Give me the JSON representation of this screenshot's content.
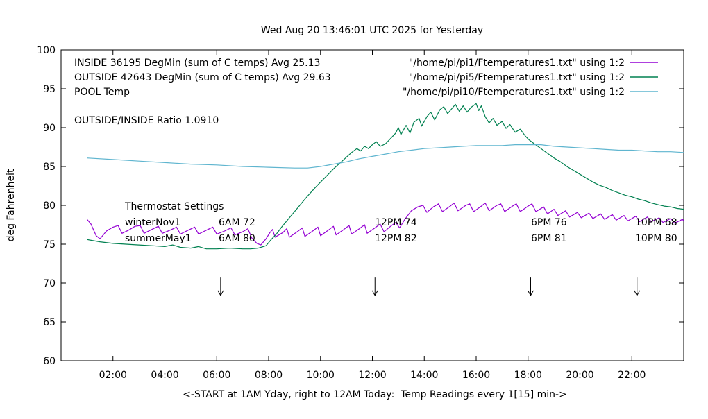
{
  "title": "Wed Aug 20 13:46:01 UTC 2025 for Yesterday",
  "axes": {
    "y": {
      "label": "deg Fahrenheit",
      "min": 60,
      "max": 100,
      "ticks": [
        {
          "v": 60,
          "label": "60"
        },
        {
          "v": 65,
          "label": "65"
        },
        {
          "v": 70,
          "label": "70"
        },
        {
          "v": 75,
          "label": "75"
        },
        {
          "v": 80,
          "label": "80"
        },
        {
          "v": 85,
          "label": "85"
        },
        {
          "v": 90,
          "label": "90"
        },
        {
          "v": 95,
          "label": "95"
        },
        {
          "v": 100,
          "label": "100"
        }
      ]
    },
    "x": {
      "label": "<-START at 1AM Yday, right to 12AM Today:  Temp Readings every 1[15] min->",
      "ticks": [
        {
          "h": 2,
          "label": "02:00"
        },
        {
          "h": 4,
          "label": "04:00"
        },
        {
          "h": 6,
          "label": "06:00"
        },
        {
          "h": 8,
          "label": "08:00"
        },
        {
          "h": 10,
          "label": "10:00"
        },
        {
          "h": 12,
          "label": "12:00"
        },
        {
          "h": 14,
          "label": "14:00"
        },
        {
          "h": 16,
          "label": "16:00"
        },
        {
          "h": 18,
          "label": "18:00"
        },
        {
          "h": 20,
          "label": "20:00"
        },
        {
          "h": 22,
          "label": "22:00"
        }
      ]
    }
  },
  "legend": [
    {
      "label": "INSIDE 36195 DegMin (sum of C temps) Avg 25.13",
      "file": "\"/home/pi/pi1/Ftemperatures1.txt\" using 1:2"
    },
    {
      "label": "OUTSIDE 42643 DegMin (sum of C temps) Avg 29.63",
      "file": "\"/home/pi/pi5/Ftemperatures1.txt\" using 1:2"
    },
    {
      "label": "POOL Temp",
      "file": "\"/home/pi/pi10/Ftemperatures1.txt\" using 1:2"
    }
  ],
  "ratio_text": "OUTSIDE/INSIDE Ratio 1.0910",
  "thermostat": {
    "header": "Thermostat Settings",
    "rows": [
      {
        "name": "winterNov1",
        "settings": [
          "6AM 72",
          "12PM 74",
          "6PM 76",
          "10PM 68"
        ]
      },
      {
        "name": "summerMay1",
        "settings": [
          "6AM 80",
          "12PM 82",
          "6PM 81",
          "10PM 80"
        ]
      }
    ]
  },
  "annotations": {
    "arrow_hours": [
      6.15,
      12.1,
      18.1,
      22.2
    ]
  },
  "chart_data": {
    "type": "line",
    "title": "Wed Aug 20 13:46:01 UTC 2025 for Yesterday",
    "xlabel": "<-START at 1AM Yday, right to 12AM Today:  Temp Readings every 1[15] min->",
    "ylabel": "deg Fahrenheit",
    "xlim": [
      0,
      24
    ],
    "ylim": [
      60,
      100
    ],
    "grid": false,
    "legend_position": "top-inside",
    "series": [
      {
        "name": "INSIDE",
        "color": "#9400d3",
        "points": [
          [
            1.0,
            78.2
          ],
          [
            1.15,
            77.6
          ],
          [
            1.35,
            76.1
          ],
          [
            1.5,
            75.7
          ],
          [
            1.75,
            76.7
          ],
          [
            2.0,
            77.2
          ],
          [
            2.2,
            77.4
          ],
          [
            2.35,
            76.4
          ],
          [
            2.6,
            76.8
          ],
          [
            2.85,
            77.3
          ],
          [
            3.05,
            77.4
          ],
          [
            3.2,
            76.4
          ],
          [
            3.5,
            76.9
          ],
          [
            3.75,
            77.3
          ],
          [
            3.9,
            76.4
          ],
          [
            4.2,
            76.8
          ],
          [
            4.45,
            77.2
          ],
          [
            4.6,
            76.3
          ],
          [
            4.9,
            76.8
          ],
          [
            5.15,
            77.2
          ],
          [
            5.3,
            76.3
          ],
          [
            5.6,
            76.8
          ],
          [
            5.85,
            77.2
          ],
          [
            6.0,
            76.3
          ],
          [
            6.3,
            76.7
          ],
          [
            6.55,
            77.1
          ],
          [
            6.7,
            76.2
          ],
          [
            7.0,
            76.6
          ],
          [
            7.2,
            77.0
          ],
          [
            7.35,
            75.8
          ],
          [
            7.55,
            75.1
          ],
          [
            7.7,
            74.9
          ],
          [
            7.9,
            75.7
          ],
          [
            8.05,
            76.5
          ],
          [
            8.15,
            76.9
          ],
          [
            8.25,
            75.9
          ],
          [
            8.55,
            76.5
          ],
          [
            8.7,
            77.0
          ],
          [
            8.8,
            75.9
          ],
          [
            9.1,
            76.6
          ],
          [
            9.3,
            77.1
          ],
          [
            9.4,
            76.0
          ],
          [
            9.7,
            76.7
          ],
          [
            9.9,
            77.2
          ],
          [
            10.0,
            76.1
          ],
          [
            10.3,
            76.8
          ],
          [
            10.5,
            77.3
          ],
          [
            10.6,
            76.2
          ],
          [
            10.9,
            76.9
          ],
          [
            11.1,
            77.4
          ],
          [
            11.2,
            76.3
          ],
          [
            11.5,
            77.0
          ],
          [
            11.7,
            77.5
          ],
          [
            11.8,
            76.4
          ],
          [
            12.1,
            77.1
          ],
          [
            12.3,
            77.6
          ],
          [
            12.45,
            76.6
          ],
          [
            12.7,
            77.3
          ],
          [
            12.9,
            77.8
          ],
          [
            13.05,
            77.1
          ],
          [
            13.25,
            78.2
          ],
          [
            13.5,
            79.3
          ],
          [
            13.75,
            79.8
          ],
          [
            13.95,
            80.0
          ],
          [
            14.1,
            79.1
          ],
          [
            14.35,
            79.8
          ],
          [
            14.55,
            80.2
          ],
          [
            14.7,
            79.2
          ],
          [
            15.0,
            79.9
          ],
          [
            15.15,
            80.3
          ],
          [
            15.3,
            79.3
          ],
          [
            15.6,
            80.0
          ],
          [
            15.75,
            80.2
          ],
          [
            15.9,
            79.2
          ],
          [
            16.2,
            79.9
          ],
          [
            16.35,
            80.3
          ],
          [
            16.5,
            79.3
          ],
          [
            16.8,
            80.0
          ],
          [
            16.95,
            80.2
          ],
          [
            17.1,
            79.2
          ],
          [
            17.4,
            79.9
          ],
          [
            17.55,
            80.2
          ],
          [
            17.7,
            79.2
          ],
          [
            18.0,
            79.9
          ],
          [
            18.15,
            80.2
          ],
          [
            18.3,
            79.2
          ],
          [
            18.6,
            79.8
          ],
          [
            18.75,
            78.9
          ],
          [
            19.0,
            79.5
          ],
          [
            19.15,
            78.7
          ],
          [
            19.45,
            79.3
          ],
          [
            19.6,
            78.5
          ],
          [
            19.9,
            79.1
          ],
          [
            20.05,
            78.4
          ],
          [
            20.35,
            79.0
          ],
          [
            20.5,
            78.3
          ],
          [
            20.8,
            78.9
          ],
          [
            20.95,
            78.2
          ],
          [
            21.25,
            78.8
          ],
          [
            21.4,
            78.1
          ],
          [
            21.7,
            78.7
          ],
          [
            21.85,
            78.0
          ],
          [
            22.15,
            78.6
          ],
          [
            22.3,
            77.9
          ],
          [
            22.6,
            78.5
          ],
          [
            22.75,
            77.9
          ],
          [
            23.05,
            78.4
          ],
          [
            23.2,
            77.8
          ],
          [
            23.5,
            78.3
          ],
          [
            23.65,
            77.7
          ],
          [
            23.95,
            78.2
          ],
          [
            24.0,
            78.0
          ]
        ]
      },
      {
        "name": "OUTSIDE",
        "color": "#008050",
        "points": [
          [
            1.0,
            75.6
          ],
          [
            1.5,
            75.3
          ],
          [
            2.0,
            75.1
          ],
          [
            2.5,
            75.0
          ],
          [
            3.0,
            74.9
          ],
          [
            3.5,
            74.8
          ],
          [
            4.0,
            74.7
          ],
          [
            4.3,
            74.9
          ],
          [
            4.6,
            74.6
          ],
          [
            5.0,
            74.5
          ],
          [
            5.3,
            74.7
          ],
          [
            5.6,
            74.4
          ],
          [
            6.0,
            74.4
          ],
          [
            6.5,
            74.5
          ],
          [
            7.0,
            74.4
          ],
          [
            7.3,
            74.4
          ],
          [
            7.6,
            74.5
          ],
          [
            7.9,
            74.8
          ],
          [
            8.1,
            75.6
          ],
          [
            8.3,
            76.3
          ],
          [
            8.5,
            77.2
          ],
          [
            8.8,
            78.4
          ],
          [
            9.0,
            79.2
          ],
          [
            9.3,
            80.4
          ],
          [
            9.5,
            81.2
          ],
          [
            9.8,
            82.3
          ],
          [
            10.0,
            83.0
          ],
          [
            10.3,
            84.0
          ],
          [
            10.5,
            84.7
          ],
          [
            10.8,
            85.6
          ],
          [
            11.0,
            86.2
          ],
          [
            11.2,
            86.8
          ],
          [
            11.4,
            87.3
          ],
          [
            11.55,
            87.0
          ],
          [
            11.7,
            87.6
          ],
          [
            11.85,
            87.3
          ],
          [
            12.0,
            87.8
          ],
          [
            12.15,
            88.2
          ],
          [
            12.3,
            87.6
          ],
          [
            12.5,
            87.9
          ],
          [
            12.7,
            88.6
          ],
          [
            12.9,
            89.3
          ],
          [
            13.0,
            90.0
          ],
          [
            13.1,
            89.1
          ],
          [
            13.3,
            90.3
          ],
          [
            13.45,
            89.3
          ],
          [
            13.6,
            90.7
          ],
          [
            13.8,
            91.2
          ],
          [
            13.9,
            90.2
          ],
          [
            14.1,
            91.4
          ],
          [
            14.25,
            92.0
          ],
          [
            14.4,
            91.0
          ],
          [
            14.6,
            92.3
          ],
          [
            14.75,
            92.7
          ],
          [
            14.9,
            91.8
          ],
          [
            15.05,
            92.4
          ],
          [
            15.2,
            93.0
          ],
          [
            15.35,
            92.1
          ],
          [
            15.5,
            92.8
          ],
          [
            15.65,
            92.0
          ],
          [
            15.8,
            92.6
          ],
          [
            16.0,
            93.1
          ],
          [
            16.1,
            92.2
          ],
          [
            16.2,
            92.8
          ],
          [
            16.35,
            91.4
          ],
          [
            16.5,
            90.6
          ],
          [
            16.65,
            91.2
          ],
          [
            16.8,
            90.3
          ],
          [
            17.0,
            90.8
          ],
          [
            17.15,
            89.9
          ],
          [
            17.3,
            90.4
          ],
          [
            17.5,
            89.4
          ],
          [
            17.7,
            89.8
          ],
          [
            17.9,
            88.9
          ],
          [
            18.05,
            88.4
          ],
          [
            18.25,
            87.9
          ],
          [
            18.5,
            87.3
          ],
          [
            18.75,
            86.7
          ],
          [
            19.0,
            86.1
          ],
          [
            19.25,
            85.6
          ],
          [
            19.5,
            85.0
          ],
          [
            19.75,
            84.5
          ],
          [
            20.0,
            84.0
          ],
          [
            20.25,
            83.5
          ],
          [
            20.5,
            83.0
          ],
          [
            20.75,
            82.6
          ],
          [
            21.0,
            82.3
          ],
          [
            21.25,
            81.9
          ],
          [
            21.5,
            81.6
          ],
          [
            21.75,
            81.3
          ],
          [
            22.0,
            81.1
          ],
          [
            22.25,
            80.8
          ],
          [
            22.5,
            80.6
          ],
          [
            22.75,
            80.3
          ],
          [
            23.0,
            80.1
          ],
          [
            23.25,
            79.9
          ],
          [
            23.5,
            79.8
          ],
          [
            23.75,
            79.6
          ],
          [
            24.0,
            79.5
          ]
        ]
      },
      {
        "name": "POOL",
        "color": "#5fb5cf",
        "points": [
          [
            1.0,
            86.1
          ],
          [
            2.0,
            85.9
          ],
          [
            3.0,
            85.7
          ],
          [
            4.0,
            85.5
          ],
          [
            5.0,
            85.3
          ],
          [
            6.0,
            85.2
          ],
          [
            7.0,
            85.0
          ],
          [
            8.0,
            84.9
          ],
          [
            9.0,
            84.8
          ],
          [
            9.5,
            84.8
          ],
          [
            10.0,
            85.0
          ],
          [
            10.5,
            85.3
          ],
          [
            11.0,
            85.6
          ],
          [
            11.5,
            86.0
          ],
          [
            12.0,
            86.3
          ],
          [
            12.5,
            86.6
          ],
          [
            13.0,
            86.9
          ],
          [
            13.5,
            87.1
          ],
          [
            14.0,
            87.3
          ],
          [
            14.5,
            87.4
          ],
          [
            15.0,
            87.5
          ],
          [
            15.5,
            87.6
          ],
          [
            16.0,
            87.7
          ],
          [
            16.5,
            87.7
          ],
          [
            17.0,
            87.7
          ],
          [
            17.5,
            87.8
          ],
          [
            18.0,
            87.8
          ],
          [
            18.5,
            87.8
          ],
          [
            19.0,
            87.6
          ],
          [
            19.5,
            87.5
          ],
          [
            20.0,
            87.4
          ],
          [
            20.5,
            87.3
          ],
          [
            21.0,
            87.2
          ],
          [
            21.5,
            87.1
          ],
          [
            22.0,
            87.1
          ],
          [
            22.5,
            87.0
          ],
          [
            23.0,
            86.9
          ],
          [
            23.5,
            86.9
          ],
          [
            24.0,
            86.8
          ]
        ]
      }
    ]
  }
}
